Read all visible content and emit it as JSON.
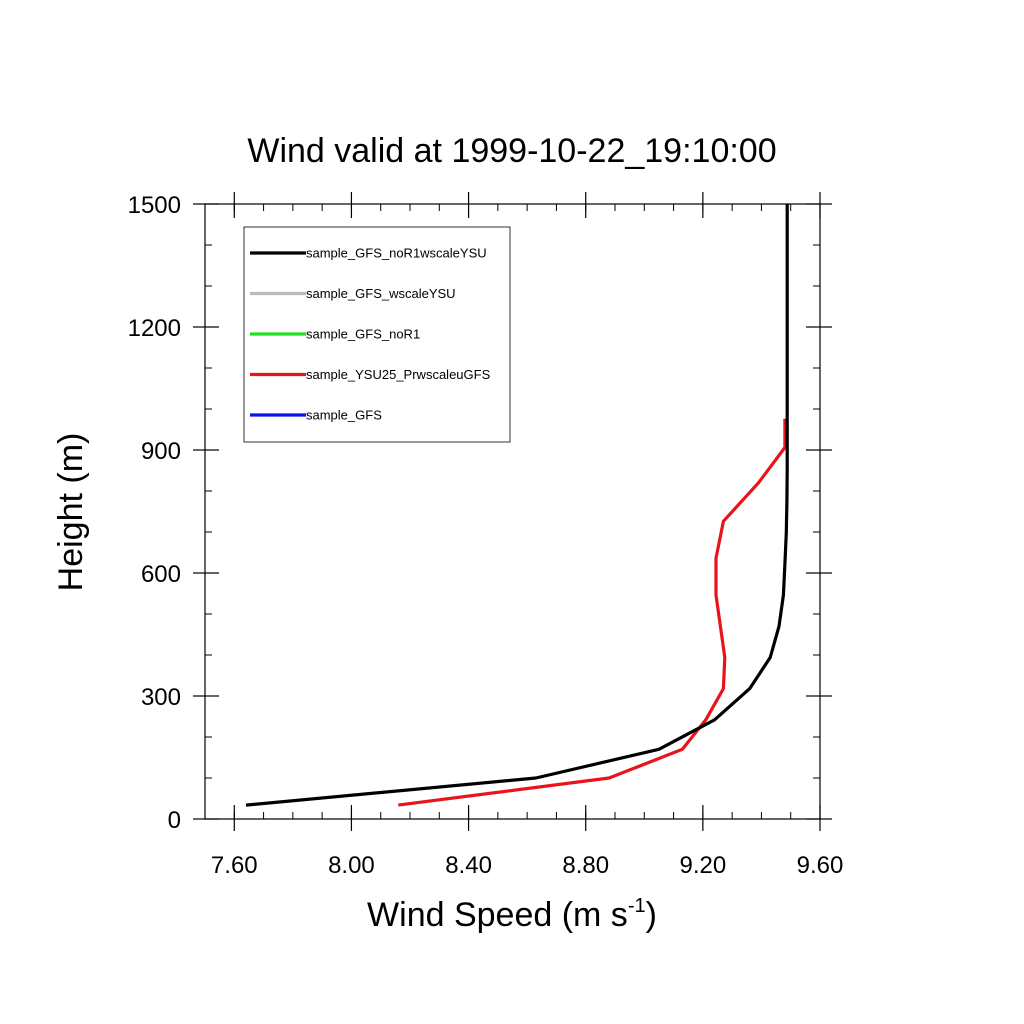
{
  "chart_data": {
    "type": "line",
    "title": "Wind valid at 1999-10-22_19:10:00",
    "xlabel_main": "Wind Speed (m s",
    "xlabel_sup": "-1",
    "xlabel_close": ")",
    "ylabel": "Height (m)",
    "xlim": [
      7.5,
      9.6
    ],
    "ylim": [
      0,
      1500
    ],
    "x_ticks": [
      7.6,
      8.0,
      8.4,
      8.8,
      9.2,
      9.6
    ],
    "x_tick_labels": [
      "7.60",
      "8.00",
      "8.40",
      "8.80",
      "9.20",
      "9.60"
    ],
    "x_minor_step": 0.1,
    "y_ticks": [
      0,
      300,
      600,
      900,
      1200,
      1500
    ],
    "y_tick_labels": [
      "0",
      "300",
      "600",
      "900",
      "1200",
      "1500"
    ],
    "y_minor_step": 100,
    "legend_position": "top-left",
    "grid": false,
    "series": [
      {
        "name": "sample_GFS_noR1wscaleYSU",
        "color": "#000000",
        "points": [
          [
            7.64,
            34
          ],
          [
            8.63,
            100
          ],
          [
            9.05,
            170
          ],
          [
            9.24,
            242
          ],
          [
            9.36,
            318
          ],
          [
            9.43,
            394
          ],
          [
            9.46,
            470
          ],
          [
            9.475,
            546
          ],
          [
            9.48,
            622
          ],
          [
            9.485,
            698
          ],
          [
            9.487,
            774
          ],
          [
            9.488,
            850
          ],
          [
            9.488,
            926
          ],
          [
            9.488,
            1000
          ],
          [
            9.488,
            1100
          ],
          [
            9.488,
            1200
          ],
          [
            9.488,
            1300
          ],
          [
            9.488,
            1400
          ],
          [
            9.488,
            1500
          ]
        ]
      },
      {
        "name": "sample_GFS_wscaleYSU",
        "color": "#bbbbbb",
        "points": []
      },
      {
        "name": "sample_GFS_noR1",
        "color": "#22e022",
        "points": []
      },
      {
        "name": "sample_YSU25_PrwscaleuGFS",
        "color": "#e8141c",
        "points": [
          [
            8.16,
            34
          ],
          [
            8.88,
            100
          ],
          [
            9.13,
            170
          ],
          [
            9.21,
            242
          ],
          [
            9.27,
            318
          ],
          [
            9.275,
            394
          ],
          [
            9.26,
            470
          ],
          [
            9.245,
            546
          ],
          [
            9.245,
            636
          ],
          [
            9.27,
            726
          ],
          [
            9.39,
            820
          ],
          [
            9.48,
            906
          ],
          [
            9.48,
            976
          ]
        ]
      },
      {
        "name": "sample_GFS",
        "color": "#0a14e6",
        "points": []
      }
    ]
  }
}
